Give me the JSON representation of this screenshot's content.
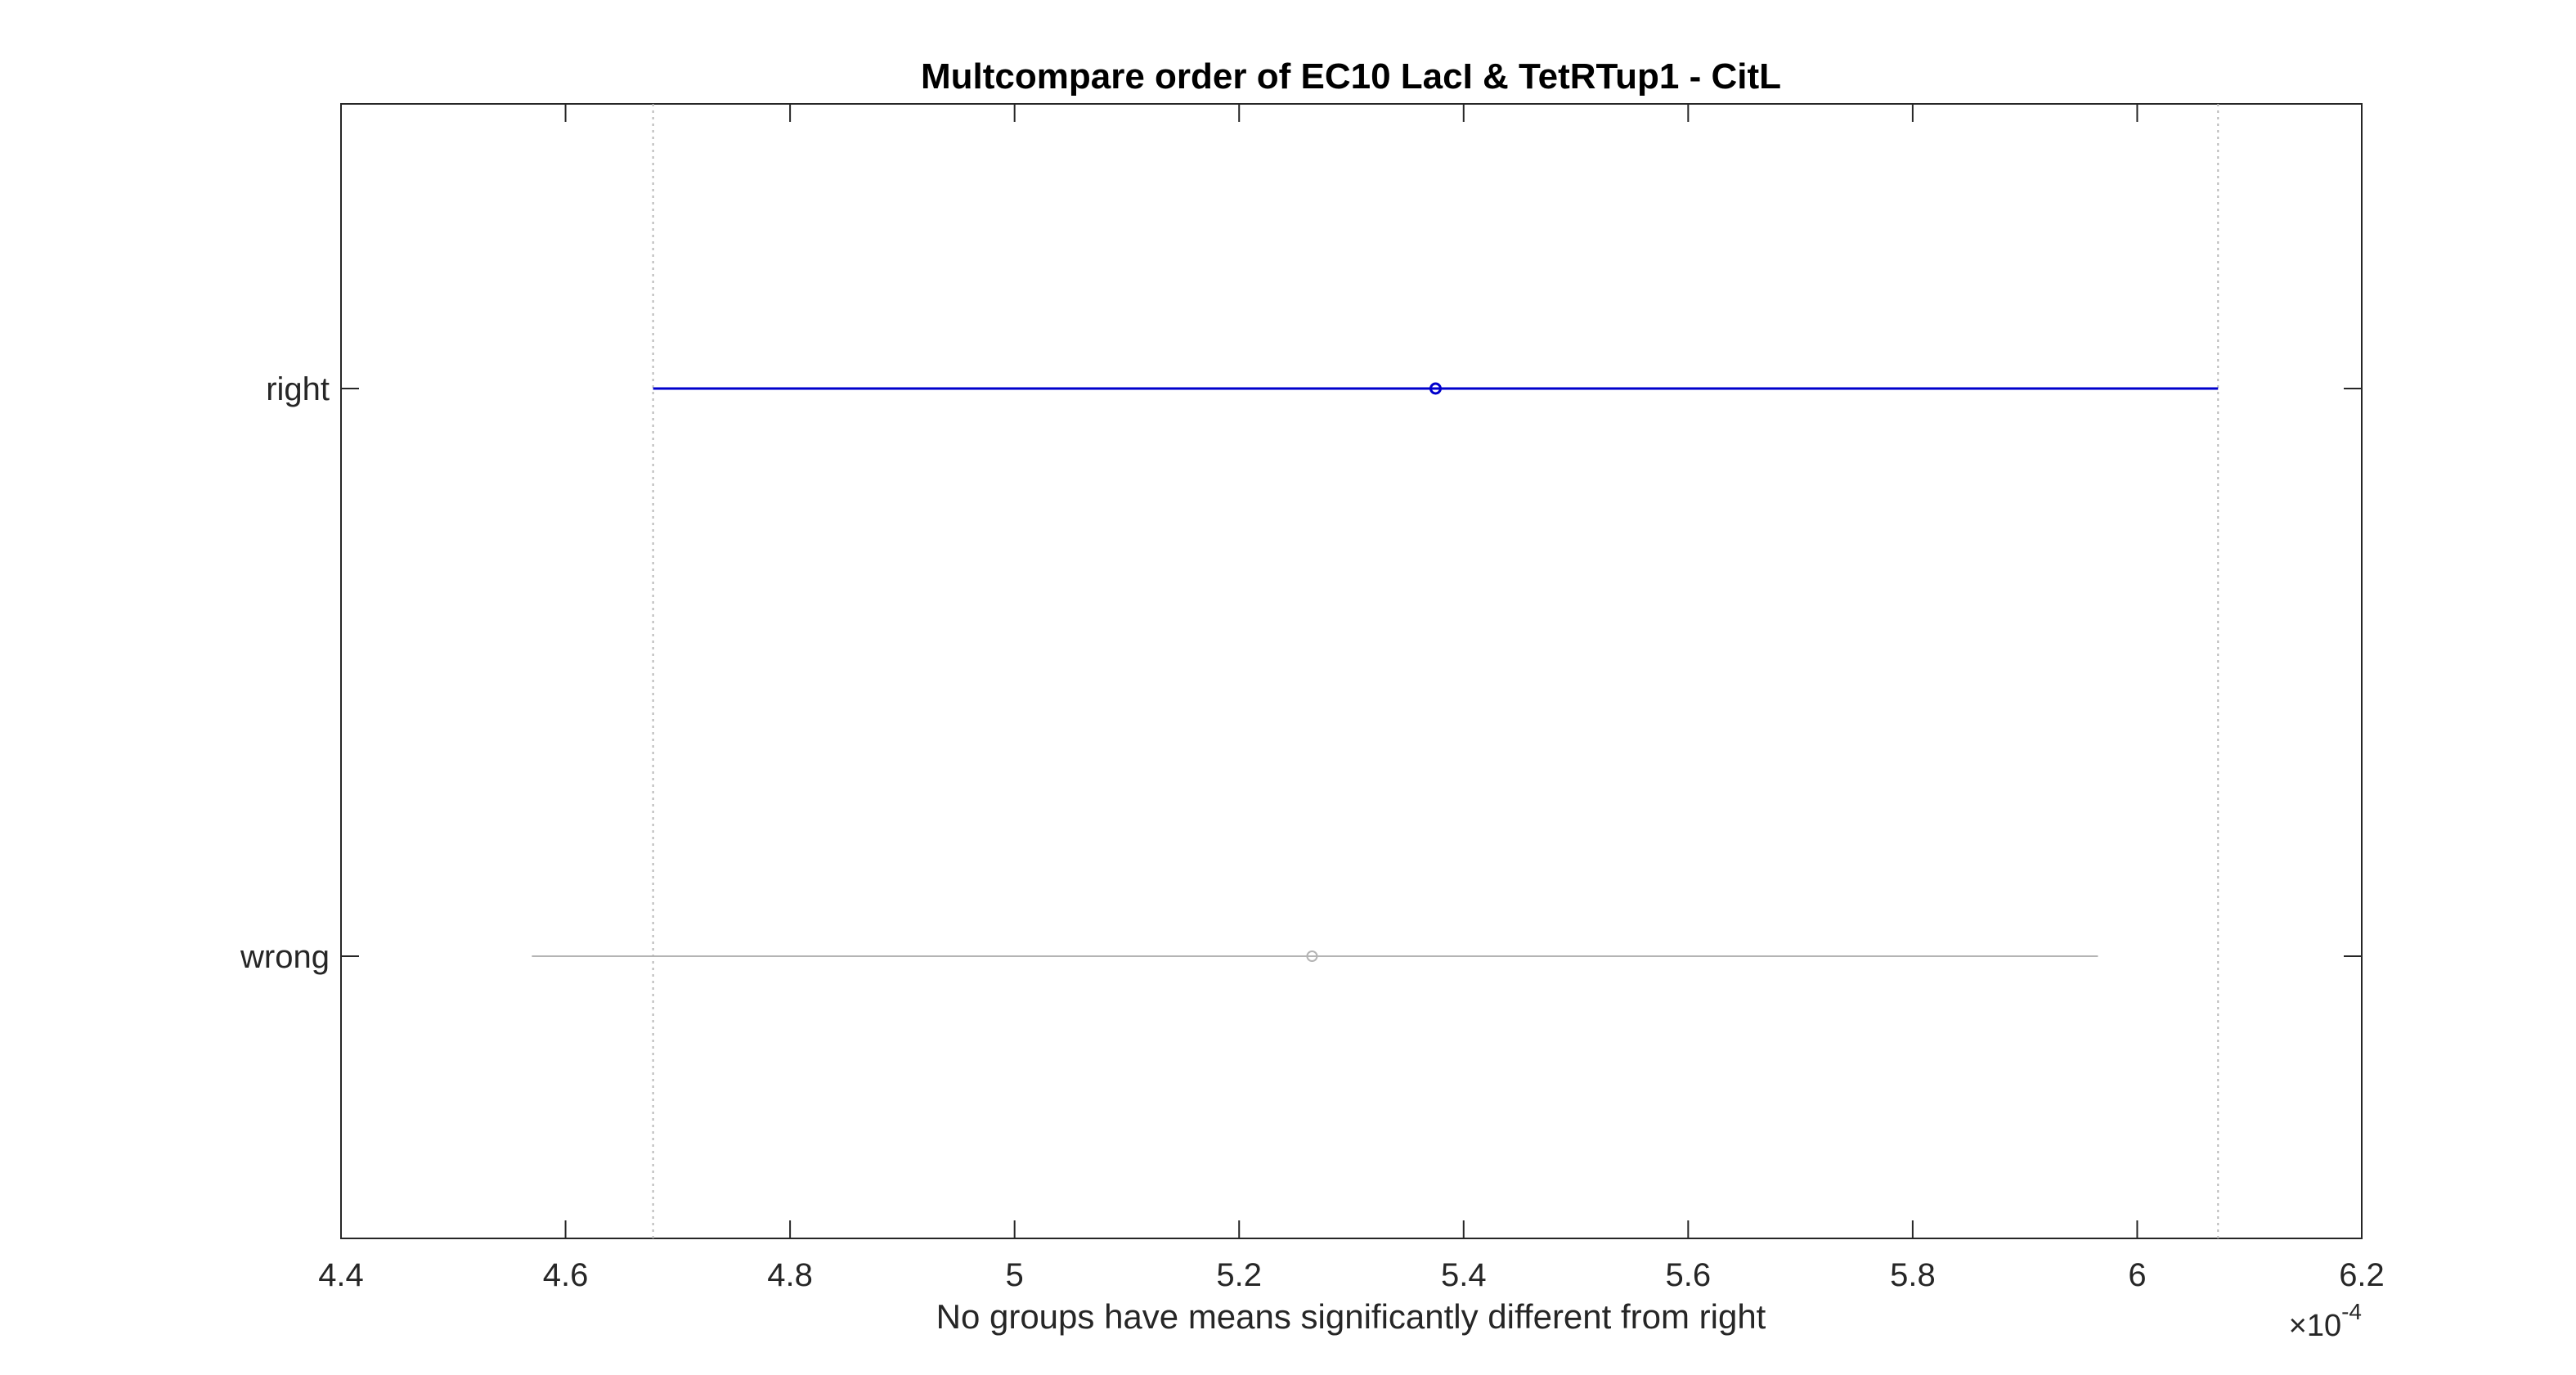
{
  "chart_data": {
    "type": "scatter",
    "title": "Multcompare order of EC10 LacI & TetRTup1 - CitL",
    "xlabel": "No groups have means significantly different from right",
    "ylabel": "",
    "exponent_base": "×10",
    "exponent_power": "-4",
    "xlim": [
      4.4,
      6.2
    ],
    "x_ticks": [
      "4.4",
      "4.6",
      "4.8",
      "5",
      "5.2",
      "5.4",
      "5.6",
      "5.8",
      "6",
      "6.2"
    ],
    "x_tick_values": [
      4.4,
      4.6,
      4.8,
      5.0,
      5.2,
      5.4,
      5.6,
      5.8,
      6.0,
      6.2
    ],
    "groups": [
      {
        "label": "right",
        "mean": 5.375,
        "lower": 4.678,
        "upper": 6.072,
        "color": "#0000cc",
        "highlighted": true
      },
      {
        "label": "wrong",
        "mean": 5.265,
        "lower": 4.57,
        "upper": 5.965,
        "color": "#b4b4b4",
        "highlighted": false
      }
    ],
    "reference_interval": [
      4.678,
      6.072
    ],
    "grid": false,
    "legend": "none"
  }
}
